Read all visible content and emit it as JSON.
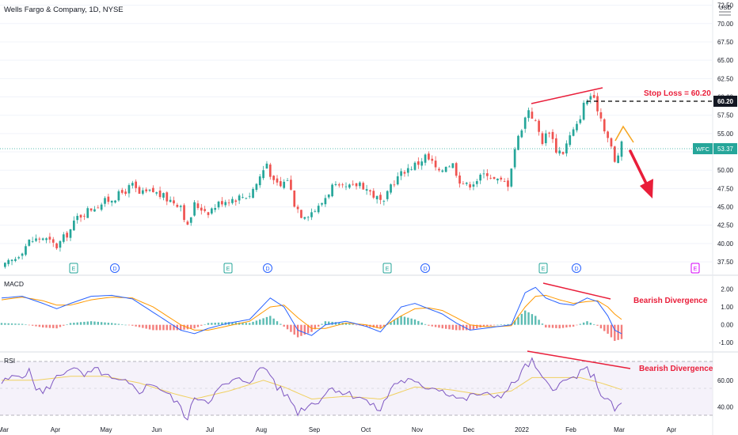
{
  "header": {
    "title": "Wells Fargo & Company, 1D, NYSE",
    "currency": "USD"
  },
  "colors": {
    "up": "#26a69a",
    "down": "#ef5350",
    "macd": "#2962ff",
    "signal": "#ff9800",
    "rsi": "#7e57c2",
    "rsi_ma": "#f0d060",
    "annotation": "#e91e3a",
    "stop_line": "#000000"
  },
  "chart_data": [
    {
      "type": "candlestick",
      "panel": "price",
      "x_axis": {
        "ticks": [
          "Mar",
          "Apr",
          "May",
          "Jun",
          "Jul",
          "Aug",
          "Sep",
          "Oct",
          "Nov",
          "Dec",
          "2022",
          "Feb",
          "Mar",
          "Apr"
        ]
      },
      "y_axis": {
        "ticks": [
          37.5,
          40.0,
          42.5,
          45.0,
          47.5,
          50.0,
          52.5,
          55.0,
          57.5,
          60.0,
          62.5,
          65.0,
          67.5,
          70.0,
          72.5
        ],
        "range": [
          36,
          73
        ]
      },
      "close_path": [
        [
          0,
          36.6
        ],
        [
          4,
          38.0
        ],
        [
          8,
          40.3
        ],
        [
          12,
          40.8
        ],
        [
          16,
          39.6
        ],
        [
          20,
          41.9
        ],
        [
          22,
          43.6
        ],
        [
          26,
          44.8
        ],
        [
          30,
          45.7
        ],
        [
          34,
          46.6
        ],
        [
          38,
          47.9
        ],
        [
          40,
          46.7
        ],
        [
          44,
          47.1
        ],
        [
          48,
          46.1
        ],
        [
          52,
          45.3
        ],
        [
          54,
          42.2
        ],
        [
          56,
          45.3
        ],
        [
          60,
          44.4
        ],
        [
          64,
          45.8
        ],
        [
          68,
          46.2
        ],
        [
          72,
          46.7
        ],
        [
          74,
          48.2
        ],
        [
          77,
          51.0
        ],
        [
          79,
          48.2
        ],
        [
          81,
          47.8
        ],
        [
          83,
          48.9
        ],
        [
          85,
          45.5
        ],
        [
          87,
          44.0
        ],
        [
          89,
          44.1
        ],
        [
          92,
          44.9
        ],
        [
          96,
          47.8
        ],
        [
          98,
          47.4
        ],
        [
          102,
          47.7
        ],
        [
          104,
          48.3
        ],
        [
          108,
          46.6
        ],
        [
          111,
          45.3
        ],
        [
          113,
          48.0
        ],
        [
          117,
          50.0
        ],
        [
          121,
          51.0
        ],
        [
          123,
          51.9
        ],
        [
          125,
          51.0
        ],
        [
          127,
          49.5
        ],
        [
          129,
          50.8
        ],
        [
          131,
          50.8
        ],
        [
          133,
          48.7
        ],
        [
          135,
          47.9
        ],
        [
          139,
          49.0
        ],
        [
          141,
          49.7
        ],
        [
          143,
          48.7
        ],
        [
          147,
          48.2
        ],
        [
          149,
          53.0
        ],
        [
          151,
          55.9
        ],
        [
          153,
          58.4
        ],
        [
          155,
          56.4
        ],
        [
          157,
          54.0
        ],
        [
          159,
          55.5
        ],
        [
          161,
          52.8
        ],
        [
          163,
          52.5
        ],
        [
          165,
          54.6
        ],
        [
          167,
          56.0
        ],
        [
          169,
          58.9
        ],
        [
          171,
          60.2
        ],
        [
          173,
          58.5
        ],
        [
          175,
          55.8
        ],
        [
          177,
          53.0
        ],
        [
          178,
          51.0
        ],
        [
          180,
          53.4
        ]
      ],
      "last_price": {
        "label": "WFC",
        "value": "53.37"
      },
      "stop_loss": {
        "value": 60.2,
        "tag": "60.20",
        "annotation": "Stop Loss = 60.20"
      },
      "event_markers": [
        "E",
        "D",
        "E",
        "D",
        "E",
        "D",
        "E",
        "D",
        "E"
      ]
    },
    {
      "type": "line",
      "panel": "macd",
      "label": "MACD",
      "y_axis": {
        "ticks": [
          2.0,
          1.0,
          0.0,
          -1.0
        ],
        "tick_labels": [
          "2.00",
          "1.00",
          "0.00",
          "-1.00"
        ],
        "range": [
          -1.3,
          2.6
        ]
      },
      "series": [
        {
          "values": [
            [
              0,
              1.5
            ],
            [
              6,
              1.6
            ],
            [
              12,
              1.2
            ],
            [
              16,
              0.9
            ],
            [
              20,
              1.2
            ],
            [
              26,
              1.6
            ],
            [
              32,
              1.65
            ],
            [
              38,
              1.45
            ],
            [
              44,
              0.7
            ],
            [
              48,
              0.2
            ],
            [
              52,
              -0.3
            ],
            [
              56,
              -0.5
            ],
            [
              60,
              -0.2
            ],
            [
              66,
              0.1
            ],
            [
              72,
              0.3
            ],
            [
              78,
              1.5
            ],
            [
              82,
              1.0
            ],
            [
              86,
              -0.3
            ],
            [
              90,
              -0.6
            ],
            [
              94,
              0.0
            ],
            [
              100,
              0.2
            ],
            [
              106,
              -0.1
            ],
            [
              110,
              -0.4
            ],
            [
              116,
              1.0
            ],
            [
              120,
              1.2
            ],
            [
              124,
              0.9
            ],
            [
              128,
              0.6
            ],
            [
              132,
              0.1
            ],
            [
              136,
              -0.3
            ],
            [
              140,
              -0.2
            ],
            [
              144,
              -0.1
            ],
            [
              148,
              0.0
            ],
            [
              152,
              1.8
            ],
            [
              155,
              2.1
            ],
            [
              158,
              1.5
            ],
            [
              162,
              1.2
            ],
            [
              166,
              1.1
            ],
            [
              170,
              1.5
            ],
            [
              173,
              1.3
            ],
            [
              176,
              0.5
            ],
            [
              178,
              -0.3
            ],
            [
              180,
              -0.5
            ]
          ]
        },
        {
          "values": [
            [
              0,
              1.4
            ],
            [
              6,
              1.55
            ],
            [
              12,
              1.35
            ],
            [
              16,
              1.1
            ],
            [
              20,
              1.1
            ],
            [
              26,
              1.4
            ],
            [
              32,
              1.55
            ],
            [
              38,
              1.5
            ],
            [
              44,
              1.0
            ],
            [
              48,
              0.5
            ],
            [
              52,
              0.0
            ],
            [
              56,
              -0.3
            ],
            [
              60,
              -0.3
            ],
            [
              66,
              -0.05
            ],
            [
              72,
              0.2
            ],
            [
              78,
              1.0
            ],
            [
              82,
              1.1
            ],
            [
              86,
              0.4
            ],
            [
              90,
              -0.2
            ],
            [
              94,
              -0.2
            ],
            [
              100,
              0.1
            ],
            [
              106,
              0.0
            ],
            [
              110,
              -0.2
            ],
            [
              116,
              0.5
            ],
            [
              120,
              0.9
            ],
            [
              124,
              0.95
            ],
            [
              128,
              0.8
            ],
            [
              132,
              0.4
            ],
            [
              136,
              0.0
            ],
            [
              140,
              -0.1
            ],
            [
              144,
              -0.1
            ],
            [
              148,
              -0.05
            ],
            [
              152,
              1.0
            ],
            [
              155,
              1.6
            ],
            [
              158,
              1.65
            ],
            [
              162,
              1.4
            ],
            [
              166,
              1.2
            ],
            [
              170,
              1.3
            ],
            [
              173,
              1.35
            ],
            [
              176,
              1.0
            ],
            [
              178,
              0.6
            ],
            [
              180,
              0.3
            ]
          ]
        }
      ],
      "annotation": "Bearish Divergence"
    },
    {
      "type": "line",
      "panel": "rsi",
      "label": "RSI",
      "y_axis": {
        "ticks": [
          60.0,
          40.0
        ],
        "tick_labels": [
          "60.00",
          "40.00"
        ],
        "range": [
          25,
          80
        ],
        "bands": [
          70,
          50,
          30
        ]
      },
      "series": [
        {
          "values": [
            [
              0,
              58
            ],
            [
              4,
              63
            ],
            [
              8,
              66
            ],
            [
              10,
              55
            ],
            [
              12,
              50
            ],
            [
              16,
              62
            ],
            [
              20,
              70
            ],
            [
              24,
              63
            ],
            [
              28,
              68
            ],
            [
              32,
              60
            ],
            [
              36,
              58
            ],
            [
              40,
              52
            ],
            [
              44,
              58
            ],
            [
              48,
              50
            ],
            [
              52,
              40
            ],
            [
              54,
              30
            ],
            [
              56,
              48
            ],
            [
              60,
              45
            ],
            [
              64,
              55
            ],
            [
              68,
              60
            ],
            [
              72,
              60
            ],
            [
              76,
              70
            ],
            [
              78,
              65
            ],
            [
              80,
              55
            ],
            [
              84,
              45
            ],
            [
              86,
              36
            ],
            [
              88,
              40
            ],
            [
              92,
              45
            ],
            [
              96,
              55
            ],
            [
              100,
              50
            ],
            [
              104,
              48
            ],
            [
              108,
              40
            ],
            [
              110,
              38
            ],
            [
              114,
              58
            ],
            [
              118,
              60
            ],
            [
              122,
              55
            ],
            [
              126,
              55
            ],
            [
              130,
              50
            ],
            [
              134,
              45
            ],
            [
              138,
              50
            ],
            [
              142,
              48
            ],
            [
              146,
              50
            ],
            [
              150,
              62
            ],
            [
              152,
              70
            ],
            [
              154,
              74
            ],
            [
              157,
              60
            ],
            [
              160,
              55
            ],
            [
              163,
              58
            ],
            [
              166,
              62
            ],
            [
              170,
              68
            ],
            [
              172,
              62
            ],
            [
              174,
              50
            ],
            [
              176,
              45
            ],
            [
              178,
              38
            ],
            [
              180,
              42
            ]
          ]
        },
        {
          "values": [
            [
              0,
              60
            ],
            [
              10,
              60
            ],
            [
              20,
              63
            ],
            [
              30,
              63
            ],
            [
              40,
              58
            ],
            [
              50,
              50
            ],
            [
              56,
              46
            ],
            [
              66,
              52
            ],
            [
              76,
              60
            ],
            [
              82,
              55
            ],
            [
              90,
              46
            ],
            [
              100,
              48
            ],
            [
              110,
              46
            ],
            [
              120,
              55
            ],
            [
              130,
              53
            ],
            [
              140,
              49
            ],
            [
              148,
              52
            ],
            [
              154,
              62
            ],
            [
              160,
              62
            ],
            [
              168,
              62
            ],
            [
              174,
              58
            ],
            [
              180,
              53
            ]
          ]
        }
      ],
      "annotation": "Bearish Divergence"
    }
  ]
}
